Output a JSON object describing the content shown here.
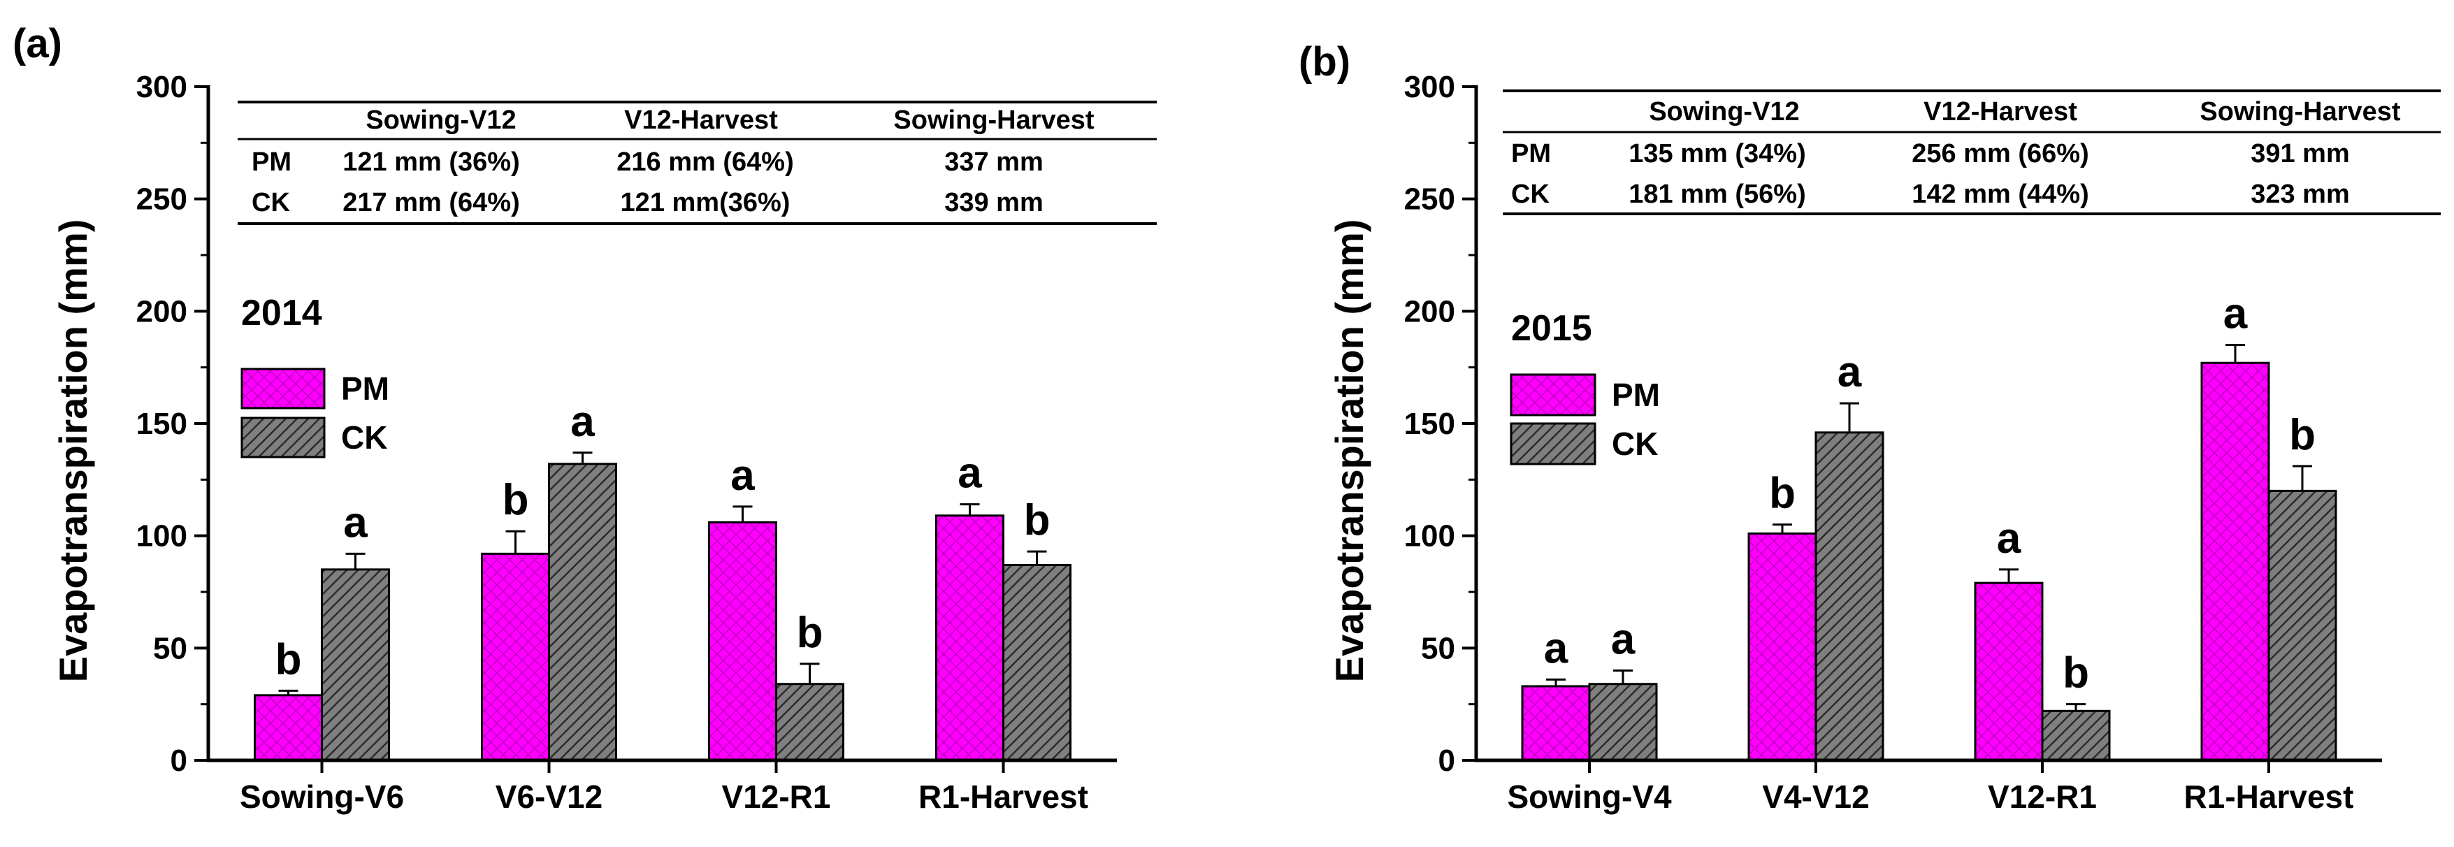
{
  "colors": {
    "pm": "#ff00ff",
    "ck": "#7f7f7f",
    "axis": "#000000"
  },
  "legend": {
    "pm": "PM",
    "ck": "CK"
  },
  "chart_data": [
    {
      "id": "a",
      "type": "bar",
      "panel_label": "(a)",
      "year": "2014",
      "ylabel": "Evapotranspiration (mm)",
      "ylim": [
        0,
        300
      ],
      "yticks": [
        0,
        50,
        100,
        150,
        200,
        250,
        300
      ],
      "categories": [
        "Sowing-V6",
        "V6-V12",
        "V12-R1",
        "R1-Harvest"
      ],
      "series": [
        {
          "name": "PM",
          "values": [
            29,
            92,
            106,
            109
          ],
          "errors": [
            2,
            10,
            7,
            5
          ],
          "letters": [
            "b",
            "b",
            "a",
            "a"
          ]
        },
        {
          "name": "CK",
          "values": [
            85,
            132,
            34,
            87
          ],
          "errors": [
            7,
            5,
            9,
            6
          ],
          "letters": [
            "a",
            "a",
            "b",
            "b"
          ]
        }
      ],
      "table": {
        "headers": [
          "",
          "Sowing-V12",
          "V12-Harvest",
          "Sowing-Harvest"
        ],
        "rows": [
          [
            "PM",
            "121 mm (36%)",
            "216 mm (64%)",
            "337 mm"
          ],
          [
            "CK",
            "217 mm (64%)",
            "121 mm(36%)",
            "339 mm"
          ]
        ]
      }
    },
    {
      "id": "b",
      "type": "bar",
      "panel_label": "(b)",
      "year": "2015",
      "ylabel": "Evapotranspiration (mm)",
      "ylim": [
        0,
        300
      ],
      "yticks": [
        0,
        50,
        100,
        150,
        200,
        250,
        300
      ],
      "categories": [
        "Sowing-V4",
        "V4-V12",
        "V12-R1",
        "R1-Harvest"
      ],
      "series": [
        {
          "name": "PM",
          "values": [
            33,
            101,
            79,
            177
          ],
          "errors": [
            3,
            4,
            6,
            8
          ],
          "letters": [
            "a",
            "b",
            "a",
            "a"
          ]
        },
        {
          "name": "CK",
          "values": [
            34,
            146,
            22,
            120
          ],
          "errors": [
            6,
            13,
            3,
            11
          ],
          "letters": [
            "a",
            "a",
            "b",
            "b"
          ]
        }
      ],
      "table": {
        "headers": [
          "",
          "Sowing-V12",
          "V12-Harvest",
          "Sowing-Harvest"
        ],
        "rows": [
          [
            "PM",
            "135 mm (34%)",
            "256 mm (66%)",
            "391 mm"
          ],
          [
            "CK",
            "181 mm (56%)",
            "142 mm (44%)",
            "323 mm"
          ]
        ]
      }
    }
  ]
}
